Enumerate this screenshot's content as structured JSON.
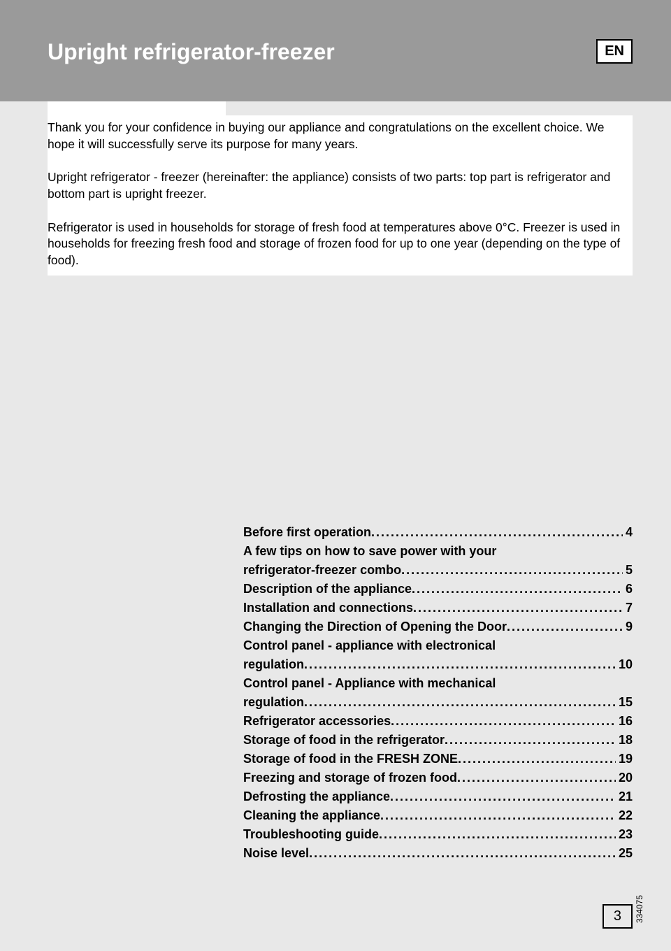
{
  "header": {
    "title": "Upright refrigerator-freezer",
    "lang": "EN"
  },
  "intro": {
    "p1": "Thank you for your confidence in buying our appliance and congratulations on the excellent choice. We hope it will successfully serve its purpose for many years.",
    "p2": "Upright refrigerator - freezer (hereinafter: the appliance) consists of two parts: top part is refrigerator and bottom part is upright freezer.",
    "p3": "Refrigerator is used in households for storage of fresh food at temperatures above 0°C. Freezer is used in households for freezing fresh food and storage of frozen food for up to one year (depending on the type of food)."
  },
  "toc": [
    {
      "label": "Before first operation",
      "page": "4"
    },
    {
      "label_line1": "A few tips on how to save power with your",
      "label_line2": "refrigerator-freezer combo ",
      "page": "5",
      "wrap": true
    },
    {
      "label": "Description of the appliance ",
      "page": "6"
    },
    {
      "label": "Installation and connections",
      "page": "7"
    },
    {
      "label": "Changing the Direction of Opening the Door ",
      "page": "9"
    },
    {
      "label_line1": "Control panel - appliance with electronical",
      "label_line2": "regulation ",
      "page": "10",
      "wrap": true
    },
    {
      "label_line1": "Control panel - Appliance with mechanical",
      "label_line2": "regulation ",
      "page": "15",
      "wrap": true
    },
    {
      "label": "Refrigerator accessories ",
      "page": "16"
    },
    {
      "label": "Storage of food in the refrigerator",
      "page": "18"
    },
    {
      "label": "Storage of food in the FRESH ZONE ",
      "page": "19"
    },
    {
      "label": "Freezing and storage of frozen food ",
      "page": "20"
    },
    {
      "label": "Defrosting the appliance",
      "page": "21"
    },
    {
      "label": "Cleaning the appliance ",
      "page": "22"
    },
    {
      "label": "Troubleshooting guide",
      "page": "23"
    },
    {
      "label": "Noise level",
      "page": "25"
    }
  ],
  "doc_id": "334075",
  "page_number": "3",
  "colors": {
    "page_bg": "#e8e8e8",
    "header_bg": "#9a9a9a",
    "title_text": "#ffffff",
    "body_text": "#000000",
    "white": "#ffffff"
  }
}
